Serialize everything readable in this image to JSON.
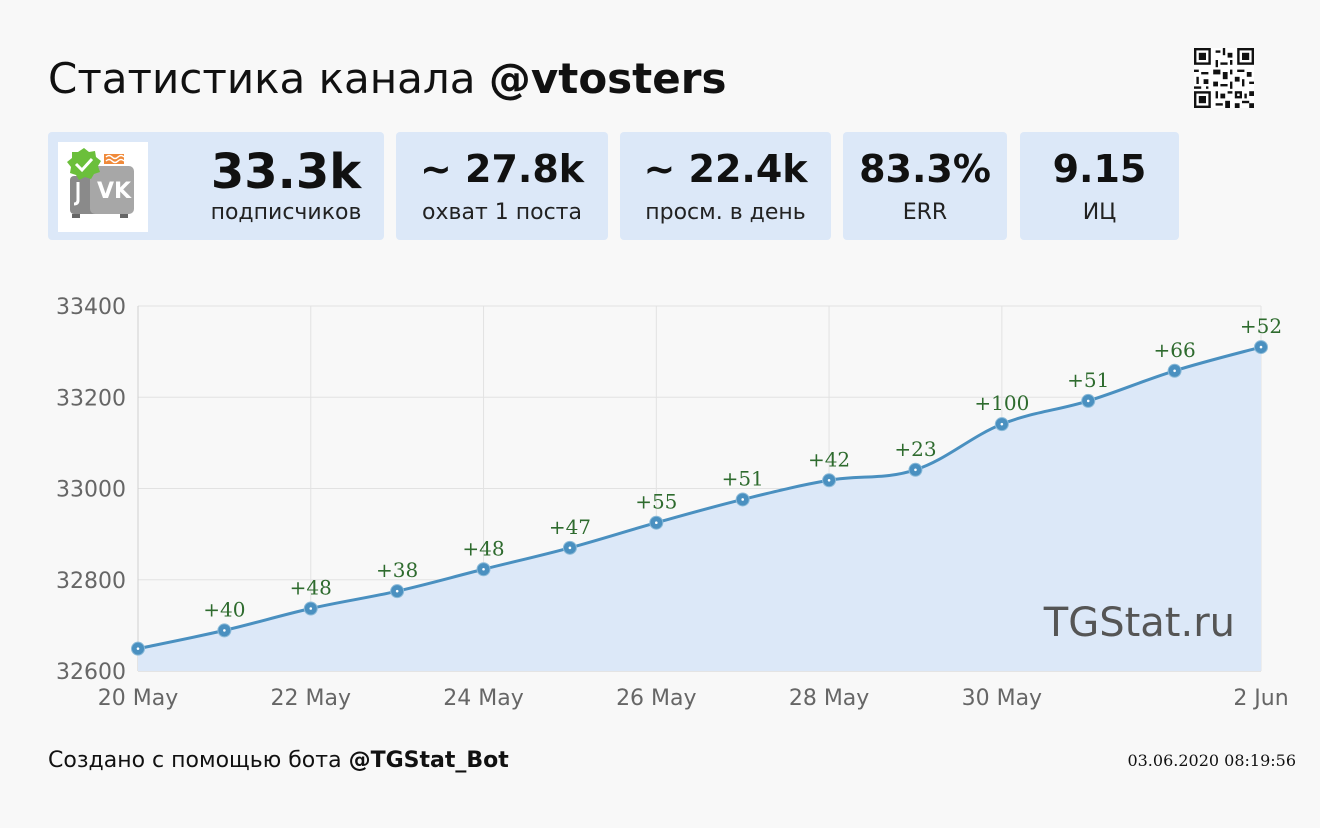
{
  "header": {
    "title_prefix": "Статистика канала",
    "channel": "@vtosters"
  },
  "stats": [
    {
      "value": "33.3k",
      "label": "подписчиков"
    },
    {
      "value": "~ 27.8k",
      "label": "охват 1 поста"
    },
    {
      "value": "~ 22.4k",
      "label": "просм. в день"
    },
    {
      "value": "83.3%",
      "label": "ERR"
    },
    {
      "value": "9.15",
      "label": "ИЦ"
    }
  ],
  "chart_data": {
    "type": "line",
    "x": [
      "20 May",
      "21 May",
      "22 May",
      "23 May",
      "24 May",
      "25 May",
      "26 May",
      "27 May",
      "28 May",
      "29 May",
      "30 May",
      "31 May",
      "1 Jun",
      "2 Jun"
    ],
    "series": [
      {
        "values": [
          32649,
          32689,
          32737,
          32775,
          32823,
          32870,
          32925,
          32976,
          33018,
          33041,
          33141,
          33192,
          33258,
          33310
        ],
        "point_labels": [
          "",
          "+40",
          "+48",
          "+38",
          "+48",
          "+47",
          "+55",
          "+51",
          "+42",
          "+23",
          "+100",
          "+51",
          "+66",
          "+52"
        ]
      }
    ],
    "x_tick_labels": [
      "20 May",
      "22 May",
      "24 May",
      "26 May",
      "28 May",
      "30 May",
      "2 Jun"
    ],
    "x_tick_indices": [
      0,
      2,
      4,
      6,
      8,
      10,
      13
    ],
    "y_ticks": [
      32600,
      32800,
      33000,
      33200,
      33400
    ],
    "ylim": [
      32600,
      33400
    ],
    "grid": true,
    "colors": {
      "line": "#4a90c0",
      "fill": "#dce8f8",
      "point_label": "#2e6b2e"
    },
    "watermark": "TGStat.ru"
  },
  "footer": {
    "created_prefix": "Создано с помощью бота",
    "bot": "@TGStat_Bot",
    "timestamp": "03.06.2020 08:19:56"
  }
}
